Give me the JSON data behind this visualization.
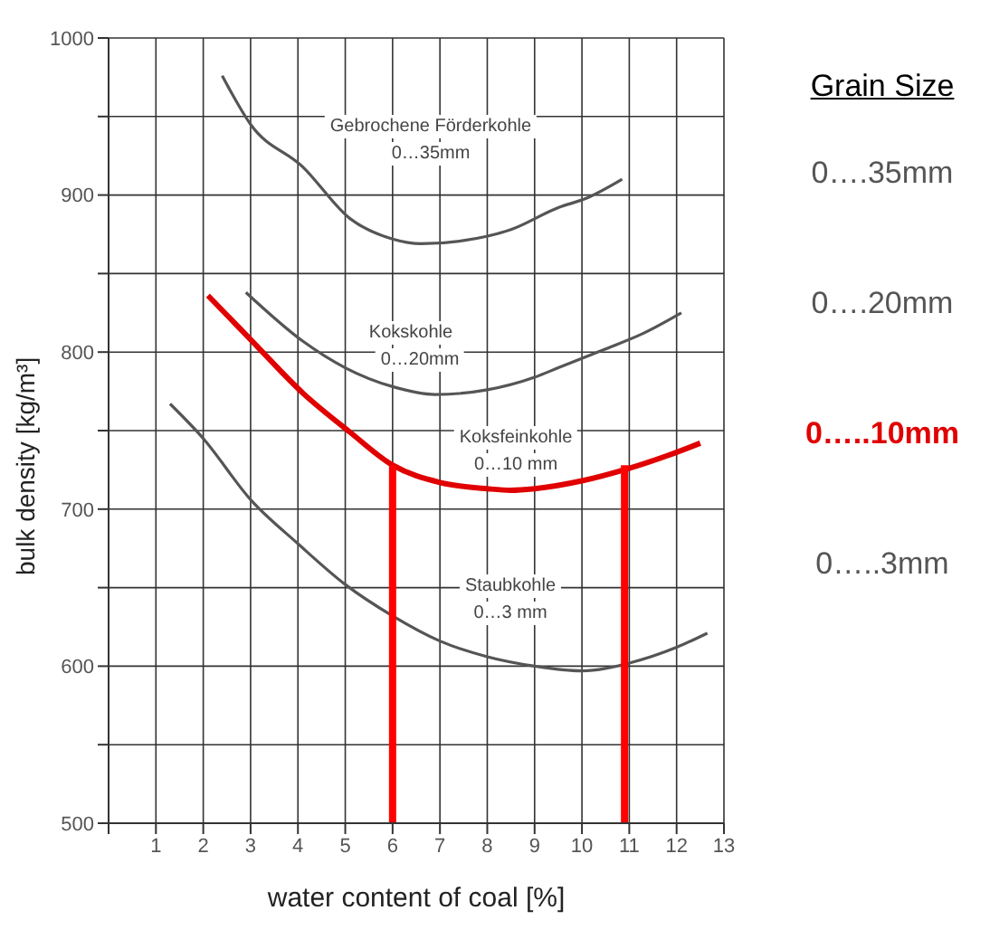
{
  "chart_data": {
    "type": "line",
    "xlabel": "water content of coal  [%]",
    "ylabel": "bulk density [kg/m³]",
    "legend_title": "Grain Size",
    "legend": "right",
    "grid": true,
    "marker": "none",
    "line_style": "solid",
    "xlim": [
      0,
      13
    ],
    "xticks": [
      {
        "value": 0,
        "label": null
      },
      1,
      2,
      3,
      4,
      5,
      6,
      7,
      8,
      9,
      10,
      11,
      12,
      13
    ],
    "ylim": [
      500,
      1000
    ],
    "yticks": [
      500,
      {
        "value": 550,
        "label": null
      },
      600,
      {
        "value": 650,
        "label": null
      },
      700,
      {
        "value": 750,
        "label": null
      },
      800,
      {
        "value": 850,
        "label": null
      },
      900,
      {
        "value": 950,
        "label": null
      },
      1000
    ],
    "series": [
      {
        "name": "0….35mm",
        "color": "#555555",
        "x": [
          2.4,
          3,
          4.1,
          5.1,
          6,
          6.6,
          7.5,
          8.5,
          9.5,
          10.1,
          10.85
        ],
        "values": [
          976,
          945,
          918,
          885,
          872,
          869,
          871,
          878,
          892,
          898,
          910
        ]
      },
      {
        "name": "0….20mm",
        "color": "#555555",
        "x": [
          2.9,
          4.1,
          5,
          6,
          6.9,
          8,
          9,
          9.5,
          10.5,
          11.3,
          12.1
        ],
        "values": [
          838,
          807,
          790,
          778,
          773,
          776,
          784,
          790,
          802,
          812,
          825
        ]
      },
      {
        "name": "0…..10mm",
        "color": "#e00000",
        "x": [
          2.1,
          3,
          4.1,
          5.1,
          6,
          7,
          8,
          8.5,
          9,
          10,
          11,
          11.8,
          12.5
        ],
        "values": [
          836,
          808,
          774,
          749,
          728,
          717,
          713,
          712,
          713,
          718,
          726,
          734,
          742
        ]
      },
      {
        "name": "0…..3mm",
        "color": "#555555",
        "x": [
          1.3,
          2,
          3,
          4,
          5,
          6,
          7,
          8,
          9,
          10,
          11,
          12,
          12.65
        ],
        "values": [
          767,
          745,
          706,
          678,
          652,
          632,
          616,
          606,
          600,
          597,
          602,
          612,
          621
        ]
      },
      {
        "color": "#ff0000",
        "x": [
          6,
          6
        ],
        "values": [
          500,
          728
        ]
      },
      {
        "color": "#ff0000",
        "x": [
          10.9,
          10.9
        ],
        "values": [
          500,
          728
        ]
      }
    ],
    "annotations": [
      "Gebrochene Förderkohle",
      "0…35mm",
      "Kokskohle",
      "0…20mm",
      "Koksfeinkohle",
      "0…10 mm",
      "Staubkohle",
      "0…3 mm"
    ]
  }
}
